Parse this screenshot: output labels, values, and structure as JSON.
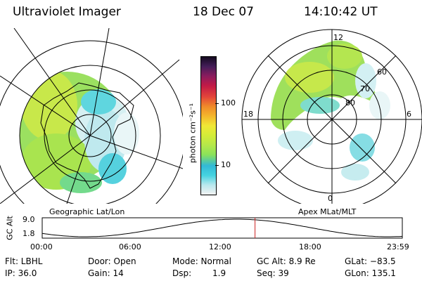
{
  "header": {
    "title": "Ultraviolet Imager",
    "date": "18 Dec 07",
    "time": "14:10:42 UT"
  },
  "left_panel": {
    "caption": "Geographic Lat/Lon"
  },
  "right_panel": {
    "caption": "Apex MLat/MLT",
    "mlt_labels": {
      "top": "12",
      "left": "18",
      "right": "6",
      "bottom": "0"
    },
    "lat_labels": [
      "60",
      "70",
      "80"
    ]
  },
  "colorbar": {
    "unit_label": "photon cm⁻²s⁻¹",
    "tick_labels": [
      "100",
      "10"
    ],
    "colors": [
      "#f2f2f2",
      "#b9e8ee",
      "#44d3e0",
      "#33b9d6",
      "#8be25a",
      "#b5e84a",
      "#d4ec38",
      "#f0e836",
      "#f4b72c",
      "#f08a2a",
      "#e3453a",
      "#c21a46",
      "#8b1c5e",
      "#451e59",
      "#140b20"
    ]
  },
  "altitude_plot": {
    "ylabel": "GC Alt",
    "y_ticks": [
      "9.0",
      "1.8"
    ],
    "x_ticks": [
      "00:00",
      "06:00",
      "12:00",
      "18:00",
      "23:59"
    ],
    "current_time_fraction": 0.591,
    "marker_color": "#cc2222"
  },
  "info": {
    "filter": "Flt: LBHL",
    "ip": "IP: 36.0",
    "door": "Door: Open",
    "gain": "Gain: 14",
    "mode": "Mode: Normal",
    "dsp_label": "Dsp:",
    "dsp_value": "1.9",
    "gc_alt": "GC Alt: 8.9 Re",
    "seq": "Seq: 39",
    "glat": "GLat: −83.5",
    "glon": "GLon: 135.1"
  }
}
